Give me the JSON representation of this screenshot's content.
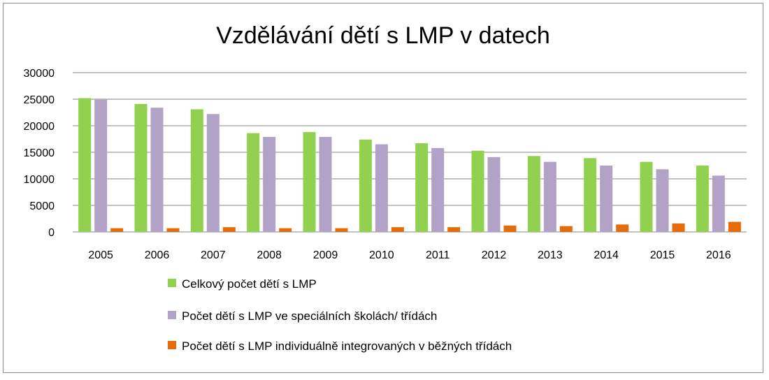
{
  "chart_data": {
    "type": "bar",
    "title": "Vzdělávání dětí s LMP v datech",
    "xlabel": "",
    "ylabel": "",
    "categories": [
      "2005",
      "2006",
      "2007",
      "2008",
      "2009",
      "2010",
      "2011",
      "2012",
      "2013",
      "2014",
      "2015",
      "2016"
    ],
    "ylim": [
      0,
      30000
    ],
    "yticks": [
      0,
      5000,
      10000,
      15000,
      20000,
      25000,
      30000
    ],
    "ytick_labels": [
      "0",
      "5000",
      "10000",
      "15000",
      "20000",
      "25000",
      "30000"
    ],
    "grid": true,
    "legend_position": "bottom",
    "series": [
      {
        "name": "Celkový počet dětí s LMP",
        "color": "#92d050",
        "values": [
          25200,
          24100,
          23100,
          18600,
          18800,
          17400,
          16700,
          15300,
          14300,
          13900,
          13200,
          12500
        ]
      },
      {
        "name": "Počet dětí s LMP ve speciálních školách/ třídách",
        "color": "#b3a2c7",
        "values": [
          24900,
          23400,
          22200,
          17900,
          17900,
          16500,
          15800,
          14100,
          13200,
          12500,
          11800,
          10600
        ]
      },
      {
        "name": "Počet dětí s LMP individuálně integrovaných v běžných třídách",
        "color": "#e46c0a",
        "values": [
          700,
          700,
          900,
          700,
          700,
          900,
          900,
          1200,
          1100,
          1400,
          1600,
          1900
        ]
      }
    ]
  }
}
